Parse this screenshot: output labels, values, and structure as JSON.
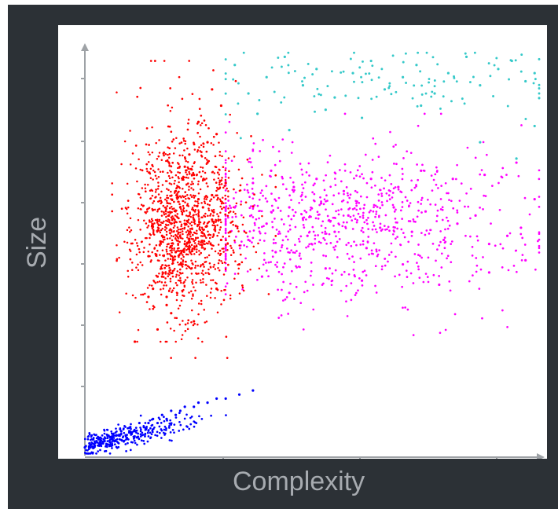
{
  "chart_data": {
    "type": "scatter",
    "title": "",
    "xlabel": "Complexity",
    "ylabel": "Size",
    "xlim": [
      0,
      100
    ],
    "ylim": [
      0,
      100
    ],
    "grid": false,
    "legend": "none",
    "series": [
      {
        "color": "#ff0000",
        "values_sample": [
          [
            16,
            44
          ],
          [
            20,
            50
          ],
          [
            23,
            55
          ],
          [
            26,
            61
          ],
          [
            28,
            64
          ],
          [
            31,
            67
          ],
          [
            24,
            58
          ],
          [
            21,
            47
          ],
          [
            18,
            37
          ],
          [
            11,
            28
          ],
          [
            14,
            39
          ],
          [
            20,
            65
          ],
          [
            23,
            74
          ],
          [
            25,
            82
          ],
          [
            28,
            90
          ],
          [
            30,
            86
          ],
          [
            27,
            72
          ],
          [
            22,
            52
          ],
          [
            19,
            35
          ],
          [
            16,
            31
          ],
          [
            32,
            55
          ],
          [
            34,
            47
          ],
          [
            29,
            41
          ],
          [
            24,
            33
          ],
          [
            19,
            57
          ],
          [
            17,
            44
          ],
          [
            25,
            63
          ],
          [
            28,
            58
          ],
          [
            30,
            53
          ],
          [
            26,
            47
          ],
          [
            21,
            43
          ],
          [
            18,
            39
          ],
          [
            15,
            41
          ],
          [
            14,
            49
          ],
          [
            17,
            54
          ],
          [
            21,
            61
          ],
          [
            24,
            69
          ],
          [
            27,
            77
          ],
          [
            29,
            79
          ],
          [
            22,
            71
          ]
        ]
      },
      {
        "color": "#ff00ff",
        "values_sample": [
          [
            33,
            61
          ],
          [
            36,
            53
          ],
          [
            40,
            57
          ],
          [
            42,
            50
          ],
          [
            45,
            61
          ],
          [
            49,
            54
          ],
          [
            52,
            62
          ],
          [
            55,
            55
          ],
          [
            58,
            59
          ],
          [
            62,
            51
          ],
          [
            65,
            56
          ],
          [
            68,
            61
          ],
          [
            72,
            55
          ],
          [
            75,
            60
          ],
          [
            79,
            53
          ],
          [
            82,
            57
          ],
          [
            86,
            59
          ],
          [
            89,
            52
          ],
          [
            93,
            54
          ],
          [
            96,
            56
          ],
          [
            99,
            63
          ],
          [
            37,
            67
          ],
          [
            41,
            70
          ],
          [
            46,
            66
          ],
          [
            51,
            68
          ],
          [
            57,
            65
          ],
          [
            63,
            68
          ],
          [
            69,
            66
          ],
          [
            74,
            70
          ],
          [
            81,
            68
          ],
          [
            88,
            69
          ],
          [
            95,
            72
          ],
          [
            39,
            44
          ],
          [
            45,
            40
          ],
          [
            53,
            46
          ],
          [
            61,
            43
          ],
          [
            70,
            47
          ],
          [
            78,
            42
          ],
          [
            89,
            45
          ],
          [
            97,
            48
          ]
        ]
      },
      {
        "color": "#35c9c9",
        "values_sample": [
          [
            33,
            96
          ],
          [
            36,
            89
          ],
          [
            40,
            93
          ],
          [
            44,
            98
          ],
          [
            48,
            91
          ],
          [
            51,
            95
          ],
          [
            55,
            88
          ],
          [
            59,
            94
          ],
          [
            63,
            97
          ],
          [
            66,
            90
          ],
          [
            70,
            93
          ],
          [
            73,
            96
          ],
          [
            77,
            89
          ],
          [
            80,
            94
          ],
          [
            84,
            98
          ],
          [
            87,
            91
          ],
          [
            91,
            95
          ],
          [
            94,
            97
          ],
          [
            97,
            92
          ],
          [
            99,
            94
          ],
          [
            38,
            84
          ],
          [
            45,
            80
          ],
          [
            53,
            85
          ],
          [
            61,
            83
          ],
          [
            74,
            86
          ],
          [
            87,
            77
          ],
          [
            95,
            73
          ],
          [
            99,
            81
          ]
        ]
      },
      {
        "color": "#0000ff",
        "values_sample": [
          [
            0,
            2
          ],
          [
            1,
            3
          ],
          [
            2,
            2
          ],
          [
            3,
            4
          ],
          [
            4,
            3
          ],
          [
            5,
            5
          ],
          [
            6,
            4
          ],
          [
            7,
            5
          ],
          [
            8,
            6
          ],
          [
            9,
            5
          ],
          [
            10,
            7
          ],
          [
            11,
            6
          ],
          [
            12,
            8
          ],
          [
            13,
            7
          ],
          [
            14,
            8
          ],
          [
            15,
            9
          ],
          [
            16,
            8
          ],
          [
            17,
            10
          ],
          [
            18,
            9
          ],
          [
            19,
            11
          ],
          [
            20,
            10
          ],
          [
            21,
            11
          ],
          [
            22,
            12
          ],
          [
            24,
            12
          ],
          [
            25,
            13
          ],
          [
            27,
            13
          ],
          [
            29,
            14
          ],
          [
            31,
            14
          ],
          [
            34,
            15
          ],
          [
            37,
            16
          ]
        ]
      }
    ]
  }
}
